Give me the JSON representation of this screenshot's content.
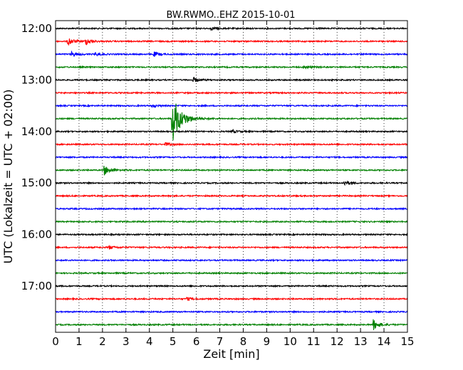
{
  "chart_data": {
    "type": "line",
    "title": "BW.RWMO..EHZ 2015-10-01",
    "xlabel": "Zeit  [min]",
    "ylabel": "UTC (Lokalzeit = UTC + 02:00)",
    "xlim": [
      0,
      15
    ],
    "x_ticks": [
      "0",
      "1",
      "2",
      "3",
      "4",
      "5",
      "6",
      "7",
      "8",
      "9",
      "10",
      "11",
      "12",
      "13",
      "14",
      "15"
    ],
    "y_ticks": [
      "12:00",
      "13:00",
      "14:00",
      "15:00",
      "16:00",
      "17:00"
    ],
    "grid": "vertical dotted",
    "trace_colors": [
      "#000000",
      "#ff0000",
      "#0000ff",
      "#008000"
    ],
    "traces": [
      {
        "start": "12:00",
        "color": "#000000",
        "events": [
          {
            "t": 6.6,
            "amp": 2
          }
        ]
      },
      {
        "start": "12:15",
        "color": "#ff0000",
        "events": [
          {
            "t": 0.55,
            "amp": 5
          },
          {
            "t": 1.3,
            "amp": 4
          }
        ]
      },
      {
        "start": "12:30",
        "color": "#0000ff",
        "events": [
          {
            "t": 0.7,
            "amp": 3
          },
          {
            "t": 1.7,
            "amp": 2
          },
          {
            "t": 4.2,
            "amp": 3
          }
        ]
      },
      {
        "start": "12:45",
        "color": "#008000",
        "events": [
          {
            "t": 10.6,
            "amp": 2
          }
        ]
      },
      {
        "start": "13:00",
        "color": "#000000",
        "events": [
          {
            "t": 5.9,
            "amp": 3
          }
        ]
      },
      {
        "start": "13:15",
        "color": "#ff0000",
        "events": []
      },
      {
        "start": "13:30",
        "color": "#0000ff",
        "events": [
          {
            "t": 4.1,
            "amp": 2
          }
        ]
      },
      {
        "start": "13:45",
        "color": "#008000",
        "events": [
          {
            "t": 4.98,
            "amp": 32
          }
        ]
      },
      {
        "start": "14:00",
        "color": "#000000",
        "events": [
          {
            "t": 7.5,
            "amp": 2
          }
        ]
      },
      {
        "start": "14:15",
        "color": "#ff0000",
        "events": [
          {
            "t": 4.7,
            "amp": 2
          }
        ]
      },
      {
        "start": "14:30",
        "color": "#0000ff",
        "events": []
      },
      {
        "start": "14:45",
        "color": "#008000",
        "events": [
          {
            "t": 2.1,
            "amp": 6
          }
        ]
      },
      {
        "start": "15:00",
        "color": "#000000",
        "events": [
          {
            "t": 12.3,
            "amp": 3
          }
        ]
      },
      {
        "start": "15:15",
        "color": "#ff0000",
        "events": []
      },
      {
        "start": "15:30",
        "color": "#0000ff",
        "events": []
      },
      {
        "start": "15:45",
        "color": "#008000",
        "events": []
      },
      {
        "start": "16:00",
        "color": "#000000",
        "events": []
      },
      {
        "start": "16:15",
        "color": "#ff0000",
        "events": [
          {
            "t": 2.3,
            "amp": 2
          }
        ]
      },
      {
        "start": "16:30",
        "color": "#0000ff",
        "events": []
      },
      {
        "start": "16:45",
        "color": "#008000",
        "events": []
      },
      {
        "start": "17:00",
        "color": "#000000",
        "events": []
      },
      {
        "start": "17:15",
        "color": "#ff0000",
        "events": [
          {
            "t": 5.6,
            "amp": 2
          }
        ]
      },
      {
        "start": "17:30",
        "color": "#0000ff",
        "events": []
      },
      {
        "start": "17:45",
        "color": "#008000",
        "events": [
          {
            "t": 13.55,
            "amp": 7
          }
        ]
      }
    ]
  }
}
